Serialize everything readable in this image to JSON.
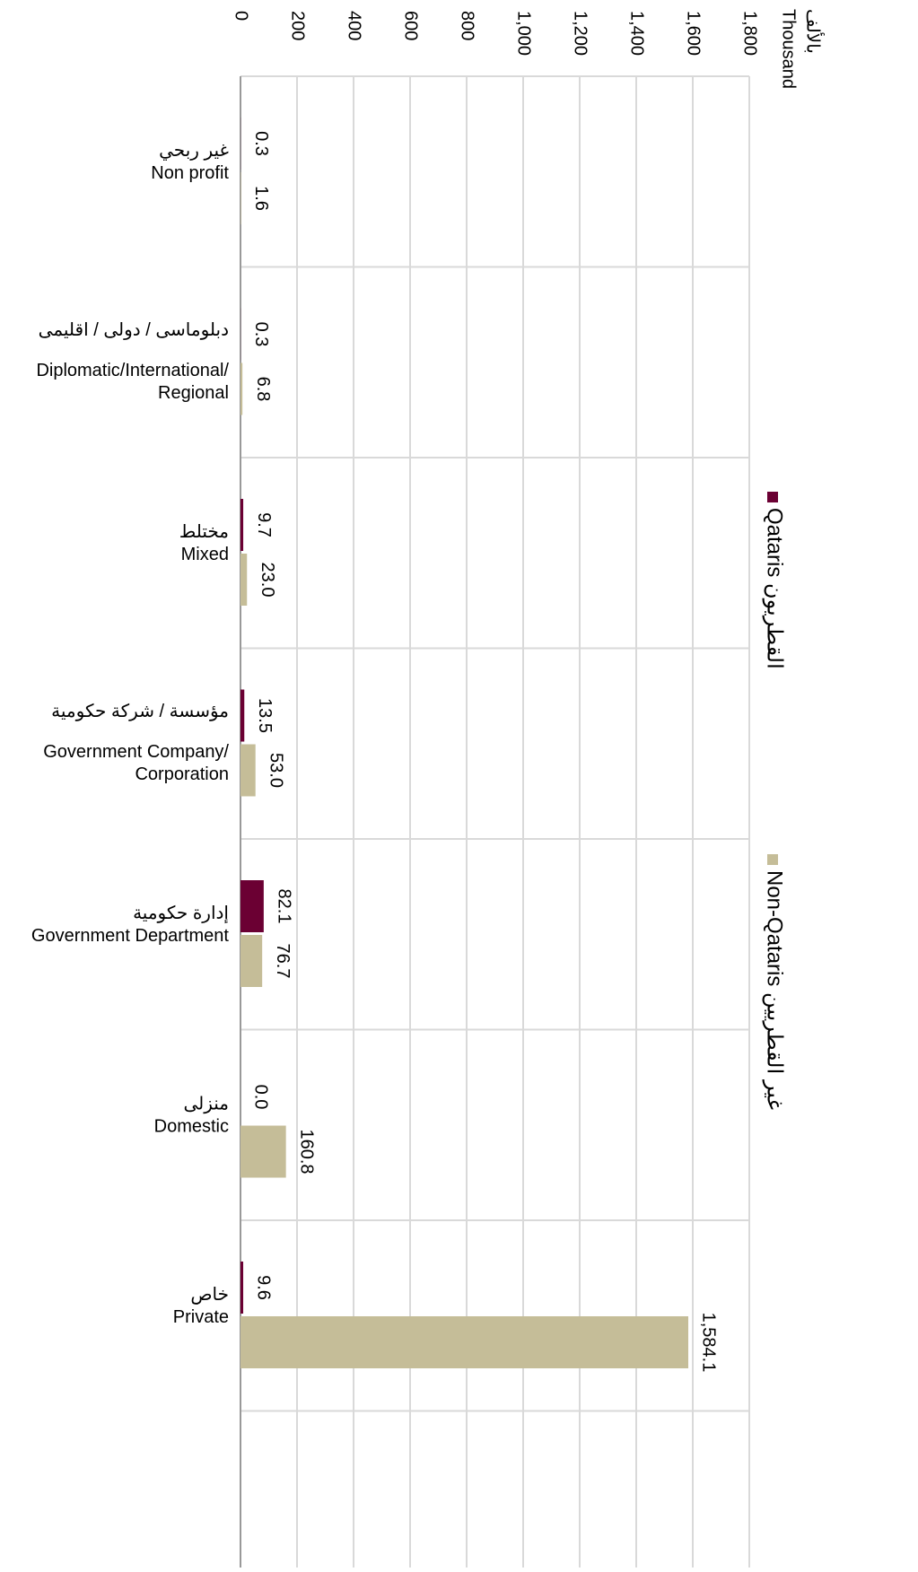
{
  "chart_data": {
    "type": "bar",
    "unit_label": [
      "بالألف",
      "Thousand"
    ],
    "categories": [
      [
        "غير ربحي",
        "Non profit"
      ],
      [
        "دبلوماسى / دولى / اقليمى",
        "Diplomatic/International/",
        "Regional"
      ],
      [
        "مختلط",
        "Mixed"
      ],
      [
        "مؤسسة / شركة حكومية",
        "Government Company/",
        "Corporation"
      ],
      [
        "إدارة حكومية",
        "Government Department"
      ],
      [
        "منزلى",
        "Domestic"
      ],
      [
        "خاص",
        "Private"
      ]
    ],
    "series": [
      {
        "name": "Qataris القطريون",
        "color": "#6b0033",
        "values": [
          0.3,
          0.3,
          9.7,
          13.5,
          82.1,
          0.0,
          9.6
        ],
        "value_labels": [
          "0.3",
          "0.3",
          "9.7",
          "13.5",
          "82.1",
          "0.0",
          "9.6"
        ]
      },
      {
        "name": "Non-Qataris غير القطريين",
        "color": "#c5bd98",
        "values": [
          1.6,
          6.8,
          23.0,
          53.0,
          76.7,
          160.8,
          1584.1
        ],
        "value_labels": [
          "1.6",
          "6.8",
          "23.0",
          "53.0",
          "76.7",
          "160.8",
          "1,584.1"
        ]
      }
    ],
    "ylim": [
      0,
      1800
    ],
    "yticks": [
      0,
      200,
      400,
      600,
      800,
      {
        "value": 1000,
        "label": "1,000"
      },
      {
        "value": 1200,
        "label": "1,200"
      },
      {
        "value": 1400,
        "label": "1,400"
      },
      {
        "value": 1600,
        "label": "1,600"
      },
      {
        "value": 1800,
        "label": "1,800"
      }
    ],
    "grid": true
  }
}
